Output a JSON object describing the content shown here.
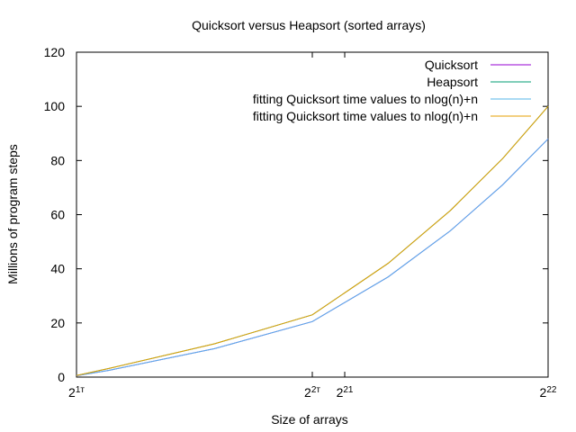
{
  "chart_data": {
    "type": "line",
    "title": "Quicksort versus Heapsort (sorted arrays)",
    "xlabel": "Size of arrays",
    "ylabel": "Millions of program steps",
    "x_scale": "log2",
    "xlim": [
      1,
      4
    ],
    "ylim": [
      0,
      120
    ],
    "x_ticks": [
      {
        "value": 1,
        "base": "2",
        "exp": "1т"
      },
      {
        "value": 2,
        "base": "2",
        "exp": "2т"
      },
      {
        "value": 2.2,
        "base": "2",
        "exp": "21"
      },
      {
        "value": 4,
        "base": "2",
        "exp": "22"
      }
    ],
    "y_ticks": [
      0,
      20,
      40,
      60,
      80,
      100,
      120
    ],
    "grid": false,
    "legend_position": "top-right",
    "x_unit_note": "x values expressed as position along the log2 axis",
    "series": [
      {
        "name": "Quicksort",
        "color": "#9400d3",
        "x": [
          1,
          1.1,
          1.5,
          2,
          2.5,
          3,
          3.5,
          4
        ],
        "y": [
          0.5,
          2.5,
          10.5,
          20.5,
          37,
          54,
          71,
          88
        ]
      },
      {
        "name": "Heapsort",
        "color": "#009e73",
        "x": [
          1,
          1.1,
          1.5,
          2,
          2.5,
          3,
          3.5,
          4
        ],
        "y": [
          0.6,
          3.2,
          12.3,
          23,
          42,
          61.5,
          80.7,
          100
        ]
      },
      {
        "name": "fitting Quicksort time values to  nlog(n)+n",
        "color": "#56b4e9",
        "x": [
          1,
          1.1,
          1.5,
          2,
          2.5,
          3,
          3.5,
          4
        ],
        "y": [
          0.5,
          2.5,
          10.5,
          20.5,
          37,
          54,
          71,
          88
        ]
      },
      {
        "name": "fitting Quicksort time values to  nlog(n)+n",
        "color": "#e69f00",
        "x": [
          1,
          1.1,
          1.5,
          2,
          2.5,
          3,
          3.5,
          4
        ],
        "y": [
          0.6,
          3.2,
          12.3,
          23,
          42,
          61.5,
          80.7,
          100
        ]
      }
    ]
  }
}
